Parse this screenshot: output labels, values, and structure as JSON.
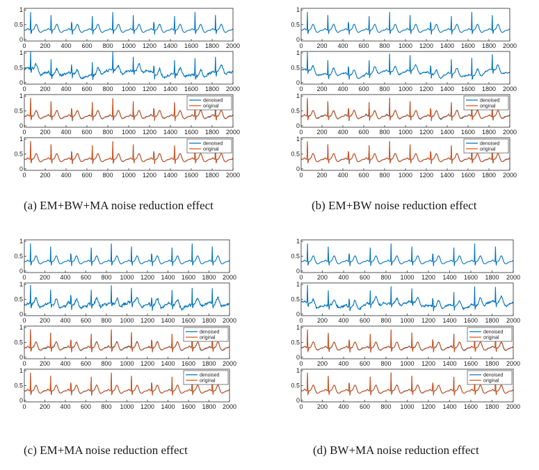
{
  "figure_captions": [
    "(a) EM+BW+MA noise reduction effect",
    "(b) EM+BW noise reduction effect",
    "(c) EM+MA noise reduction effect",
    "(d) BW+MA noise reduction effect"
  ],
  "colors": {
    "denoised": "#0072BD",
    "original": "#D95319",
    "axis": "#262626"
  },
  "chart_data": [
    {
      "panel": "a",
      "caption": "(a) EM+BW+MA noise reduction effect",
      "subplots": [
        {
          "type": "line",
          "role": "clean",
          "xlim": [
            0,
            2000
          ],
          "ylim": [
            0,
            1
          ],
          "xticks": [
            "0",
            "200",
            "400",
            "600",
            "800",
            "1000",
            "1200",
            "1400",
            "1600",
            "1800",
            "2000"
          ],
          "yticks": [
            "0",
            "0.5",
            "1"
          ],
          "series": [
            {
              "name": "",
              "color": "#0072BD",
              "noise": 0,
              "wander": 0
            }
          ]
        },
        {
          "type": "line",
          "role": "noisy",
          "xlim": [
            0,
            2000
          ],
          "ylim": [
            0,
            1
          ],
          "xticks": [
            "0",
            "200",
            "400",
            "600",
            "800",
            "1000",
            "1200",
            "1400",
            "1600",
            "1800",
            "2000"
          ],
          "yticks": [
            "0",
            "0.5",
            "1"
          ],
          "series": [
            {
              "name": "",
              "color": "#0072BD",
              "noise": 0.06,
              "wander": 0.12
            }
          ]
        },
        {
          "type": "line",
          "role": "compare",
          "xlim": [
            0,
            2000
          ],
          "ylim": [
            0,
            1
          ],
          "xticks": [
            "0",
            "200",
            "400",
            "600",
            "800",
            "1000",
            "1200",
            "1400",
            "1600",
            "1800",
            "2000"
          ],
          "yticks": [
            "0",
            "0.5",
            "1"
          ],
          "legend": [
            "denoised",
            "original"
          ],
          "series": [
            {
              "name": "denoised",
              "color": "#0072BD",
              "noise": 0.02,
              "wander": 0
            },
            {
              "name": "original",
              "color": "#D95319",
              "noise": 0,
              "wander": 0
            }
          ]
        },
        {
          "type": "line",
          "role": "compare",
          "xlim": [
            0,
            2000
          ],
          "ylim": [
            0,
            1
          ],
          "xticks": [
            "0",
            "200",
            "400",
            "600",
            "800",
            "1000",
            "1200",
            "1400",
            "1600",
            "1800",
            "2000"
          ],
          "yticks": [
            "0",
            "0.5",
            "1"
          ],
          "legend": [
            "denoised",
            "original"
          ],
          "series": [
            {
              "name": "denoised",
              "color": "#0072BD",
              "noise": 0.01,
              "wander": 0
            },
            {
              "name": "original",
              "color": "#D95319",
              "noise": 0,
              "wander": 0
            }
          ]
        }
      ]
    },
    {
      "panel": "b",
      "caption": "(b) EM+BW noise reduction effect",
      "subplots": [
        {
          "type": "line",
          "role": "clean",
          "xlim": [
            0,
            2000
          ],
          "ylim": [
            0,
            1
          ],
          "xticks": [
            "0",
            "200",
            "400",
            "600",
            "800",
            "1000",
            "1200",
            "1400",
            "1600",
            "1800",
            "2000"
          ],
          "yticks": [
            "0",
            "0.5",
            "1"
          ],
          "series": [
            {
              "name": "",
              "color": "#0072BD",
              "noise": 0,
              "wander": 0
            }
          ]
        },
        {
          "type": "line",
          "role": "noisy",
          "xlim": [
            0,
            2000
          ],
          "ylim": [
            0,
            1
          ],
          "xticks": [
            "0",
            "200",
            "400",
            "600",
            "800",
            "1000",
            "1200",
            "1400",
            "1600",
            "1800",
            "2000"
          ],
          "yticks": [
            "0",
            "0.5",
            "1"
          ],
          "series": [
            {
              "name": "",
              "color": "#0072BD",
              "noise": 0.03,
              "wander": 0.12
            }
          ]
        },
        {
          "type": "line",
          "role": "compare",
          "xlim": [
            0,
            2000
          ],
          "ylim": [
            0,
            1
          ],
          "xticks": [
            "0",
            "200",
            "400",
            "600",
            "800",
            "1000",
            "1200",
            "1400",
            "1600",
            "1800",
            "2000"
          ],
          "yticks": [
            "0",
            "0.5",
            "1"
          ],
          "legend": [
            "denoised",
            "original"
          ],
          "series": [
            {
              "name": "denoised",
              "color": "#0072BD",
              "noise": 0.02,
              "wander": 0
            },
            {
              "name": "original",
              "color": "#D95319",
              "noise": 0,
              "wander": 0
            }
          ]
        },
        {
          "type": "line",
          "role": "compare",
          "xlim": [
            0,
            2000
          ],
          "ylim": [
            0,
            1
          ],
          "xticks": [
            "0",
            "200",
            "400",
            "600",
            "800",
            "1000",
            "1200",
            "1400",
            "1600",
            "1800",
            "2000"
          ],
          "yticks": [
            "0",
            "0.5",
            "1"
          ],
          "legend": [
            "denoised",
            "original"
          ],
          "series": [
            {
              "name": "denoised",
              "color": "#0072BD",
              "noise": 0.01,
              "wander": 0
            },
            {
              "name": "original",
              "color": "#D95319",
              "noise": 0,
              "wander": 0
            }
          ]
        }
      ]
    },
    {
      "panel": "c",
      "caption": "(c) EM+MA noise reduction effect",
      "subplots": [
        {
          "type": "line",
          "role": "clean",
          "xlim": [
            0,
            2000
          ],
          "ylim": [
            0,
            1
          ],
          "xticks": [
            "0",
            "200",
            "400",
            "600",
            "800",
            "1000",
            "1200",
            "1400",
            "1600",
            "1800",
            "2000"
          ],
          "yticks": [
            "0",
            "0.5",
            "1"
          ],
          "series": [
            {
              "name": "",
              "color": "#0072BD",
              "noise": 0,
              "wander": 0
            }
          ]
        },
        {
          "type": "line",
          "role": "noisy",
          "xlim": [
            0,
            2000
          ],
          "ylim": [
            0,
            1
          ],
          "xticks": [
            "0",
            "200",
            "400",
            "600",
            "800",
            "1000",
            "1200",
            "1400",
            "1600",
            "1800",
            "2000"
          ],
          "yticks": [
            "0",
            "0.5",
            "1"
          ],
          "series": [
            {
              "name": "",
              "color": "#0072BD",
              "noise": 0.07,
              "wander": 0.04
            }
          ]
        },
        {
          "type": "line",
          "role": "compare",
          "xlim": [
            0,
            2000
          ],
          "ylim": [
            0,
            1
          ],
          "xticks": [
            "0",
            "200",
            "400",
            "600",
            "800",
            "1000",
            "1200",
            "1400",
            "1600",
            "1800",
            "2000"
          ],
          "yticks": [
            "0",
            "0.5",
            "1"
          ],
          "legend": [
            "denoised",
            "original"
          ],
          "series": [
            {
              "name": "denoised",
              "color": "#0072BD",
              "noise": 0.02,
              "wander": 0
            },
            {
              "name": "original",
              "color": "#D95319",
              "noise": 0,
              "wander": 0
            }
          ]
        },
        {
          "type": "line",
          "role": "compare",
          "xlim": [
            0,
            2000
          ],
          "ylim": [
            0,
            1
          ],
          "xticks": [
            "0",
            "200",
            "400",
            "600",
            "800",
            "1000",
            "1200",
            "1400",
            "1600",
            "1800",
            "2000"
          ],
          "yticks": [
            "0",
            "0.5",
            "1"
          ],
          "legend": [
            "denoised",
            "original"
          ],
          "series": [
            {
              "name": "denoised",
              "color": "#0072BD",
              "noise": 0.01,
              "wander": 0
            },
            {
              "name": "original",
              "color": "#D95319",
              "noise": 0,
              "wander": 0
            }
          ]
        }
      ]
    },
    {
      "panel": "d",
      "caption": "(d) BW+MA noise reduction effect",
      "subplots": [
        {
          "type": "line",
          "role": "clean",
          "xlim": [
            0,
            2000
          ],
          "ylim": [
            0,
            1
          ],
          "xticks": [
            "0",
            "200",
            "400",
            "600",
            "800",
            "1000",
            "1200",
            "1400",
            "1600",
            "1800",
            "2000"
          ],
          "yticks": [
            "0",
            "0.5",
            "1"
          ],
          "series": [
            {
              "name": "",
              "color": "#0072BD",
              "noise": 0,
              "wander": 0
            }
          ]
        },
        {
          "type": "line",
          "role": "noisy",
          "xlim": [
            0,
            2000
          ],
          "ylim": [
            0,
            1
          ],
          "xticks": [
            "0",
            "200",
            "400",
            "600",
            "800",
            "1000",
            "1200",
            "1400",
            "1600",
            "1800",
            "2000"
          ],
          "yticks": [
            "0",
            "0.5",
            "1"
          ],
          "series": [
            {
              "name": "",
              "color": "#0072BD",
              "noise": 0.05,
              "wander": 0.1
            }
          ]
        },
        {
          "type": "line",
          "role": "compare",
          "xlim": [
            0,
            2000
          ],
          "ylim": [
            0,
            1
          ],
          "xticks": [
            "0",
            "200",
            "400",
            "600",
            "800",
            "1000",
            "1200",
            "1400",
            "1600",
            "1800",
            "2000"
          ],
          "yticks": [
            "0",
            "0.5",
            "1"
          ],
          "legend": [
            "denoised",
            "original"
          ],
          "series": [
            {
              "name": "denoised",
              "color": "#0072BD",
              "noise": 0.02,
              "wander": 0
            },
            {
              "name": "original",
              "color": "#D95319",
              "noise": 0,
              "wander": 0
            }
          ]
        },
        {
          "type": "line",
          "role": "compare",
          "xlim": [
            0,
            2000
          ],
          "ylim": [
            0,
            1
          ],
          "xticks": [
            "0",
            "200",
            "400",
            "600",
            "800",
            "1000",
            "1200",
            "1400",
            "1600",
            "1800",
            "2000"
          ],
          "yticks": [
            "0",
            "0.5",
            "1"
          ],
          "legend": [
            "denoised",
            "original"
          ],
          "series": [
            {
              "name": "denoised",
              "color": "#0072BD",
              "noise": 0.01,
              "wander": 0
            },
            {
              "name": "original",
              "color": "#D95319",
              "noise": 0,
              "wander": 0
            }
          ]
        }
      ]
    }
  ]
}
